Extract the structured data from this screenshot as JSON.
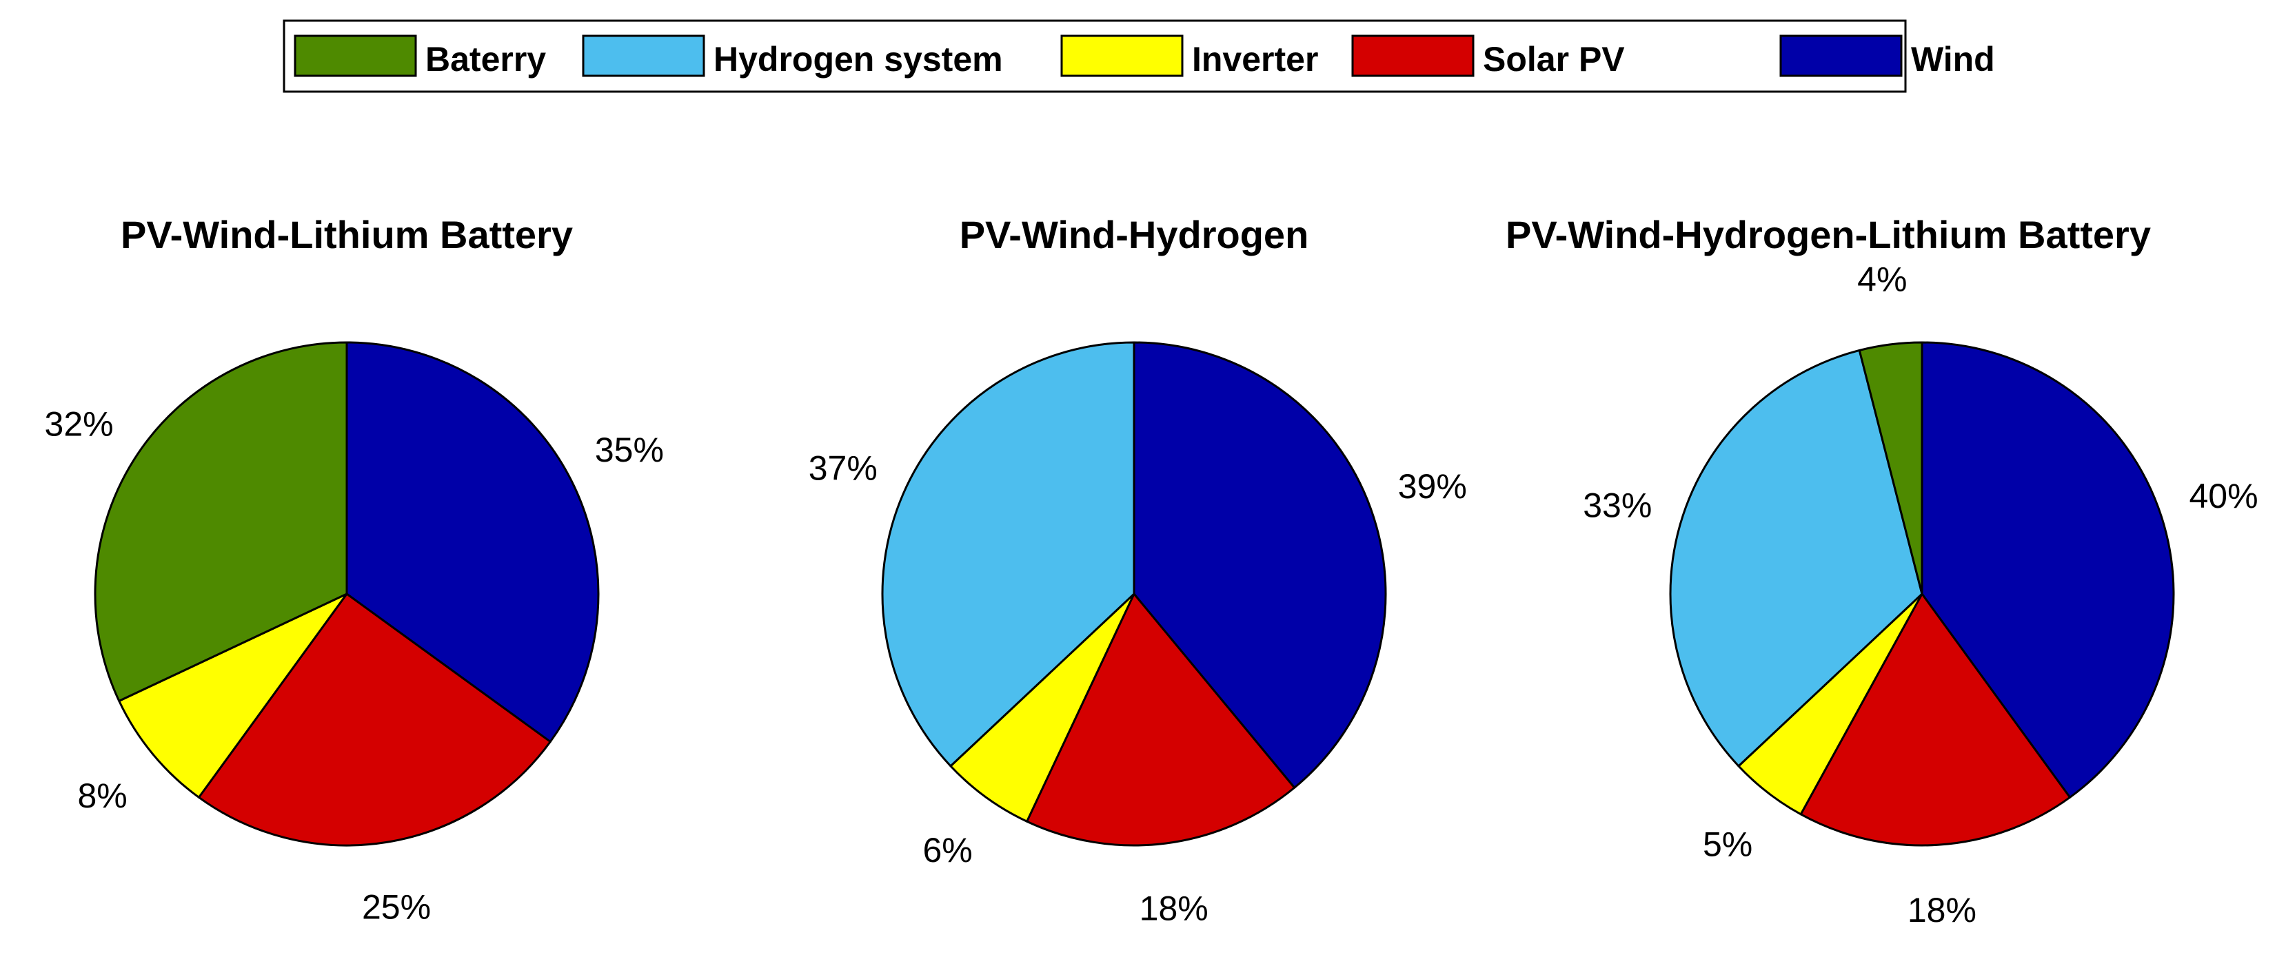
{
  "legend": {
    "placement": "top-center",
    "entries": [
      {
        "label": "Baterry",
        "color": "#4E8A00"
      },
      {
        "label": "Hydrogen system",
        "color": "#4DBEEE"
      },
      {
        "label": "Inverter",
        "color": "#FFFF00"
      },
      {
        "label": "Solar PV",
        "color": "#D40000"
      },
      {
        "label": "Wind",
        "color": "#0000A8"
      }
    ]
  },
  "chart_data": [
    {
      "type": "pie",
      "title": "PV-Wind-Lithium Battery",
      "slices": [
        {
          "category": "Wind",
          "value": 35,
          "label": "35%"
        },
        {
          "category": "Solar PV",
          "value": 25,
          "label": "25%"
        },
        {
          "category": "Inverter",
          "value": 8,
          "label": "8%"
        },
        {
          "category": "Baterry",
          "value": 32,
          "label": "32%"
        }
      ]
    },
    {
      "type": "pie",
      "title": "PV-Wind-Hydrogen",
      "slices": [
        {
          "category": "Wind",
          "value": 39,
          "label": "39%"
        },
        {
          "category": "Solar PV",
          "value": 18,
          "label": "18%"
        },
        {
          "category": "Inverter",
          "value": 6,
          "label": "6%"
        },
        {
          "category": "Hydrogen system",
          "value": 37,
          "label": "37%"
        }
      ]
    },
    {
      "type": "pie",
      "title": "PV-Wind-Hydrogen-Lithium Battery",
      "slices": [
        {
          "category": "Wind",
          "value": 40,
          "label": "40%"
        },
        {
          "category": "Solar PV",
          "value": 18,
          "label": "18%"
        },
        {
          "category": "Inverter",
          "value": 5,
          "label": "5%"
        },
        {
          "category": "Hydrogen system",
          "value": 33,
          "label": "33%"
        },
        {
          "category": "Baterry",
          "value": 4,
          "label": "4%"
        }
      ]
    }
  ]
}
